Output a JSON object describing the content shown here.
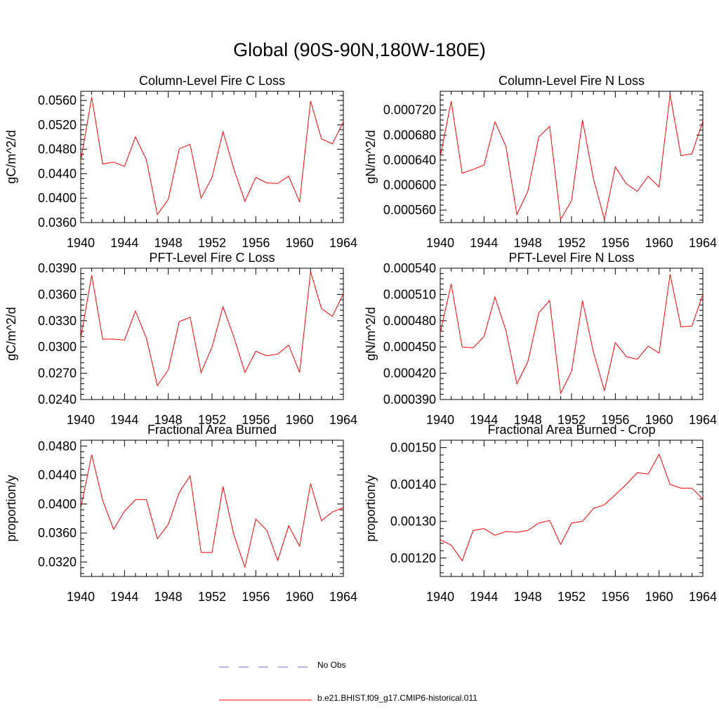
{
  "title": "Global (90S-90N,180W-180E)",
  "colors": {
    "series": "#ff0000",
    "obs": "#6a6ad8",
    "axis": "#000000"
  },
  "legend": [
    {
      "label": "No Obs",
      "style": "dashed",
      "color": "#6a6ad8"
    },
    {
      "label": "b.e21.BHIST.f09_g17.CMIP6-historical.011",
      "style": "solid",
      "color": "#ff0000"
    }
  ],
  "chart_data": [
    {
      "type": "line",
      "title": "Column-Level Fire C Loss",
      "ylabel": "gC/m^2/d",
      "xlim": [
        1940,
        1964
      ],
      "ylim": [
        0.036,
        0.0575
      ],
      "xticks": [
        "1940",
        "1944",
        "1948",
        "1952",
        "1956",
        "1960",
        "1964"
      ],
      "yticks": [
        "0.0360",
        "0.0400",
        "0.0440",
        "0.0480",
        "0.0520",
        "0.0560"
      ],
      "x": [
        1940,
        1941,
        1942,
        1943,
        1944,
        1945,
        1946,
        1947,
        1948,
        1949,
        1950,
        1951,
        1952,
        1953,
        1954,
        1955,
        1956,
        1957,
        1958,
        1959,
        1960,
        1961,
        1962,
        1963,
        1964
      ],
      "series": [
        {
          "name": "b.e21.BHIST.f09_g17.CMIP6-historical.011",
          "values": [
            0.0461,
            0.0565,
            0.0456,
            0.0459,
            0.0452,
            0.05,
            0.0463,
            0.0373,
            0.0398,
            0.0481,
            0.0488,
            0.04,
            0.0434,
            0.0509,
            0.0447,
            0.0395,
            0.0434,
            0.0425,
            0.0424,
            0.0436,
            0.0394,
            0.0559,
            0.0497,
            0.0489,
            0.0525
          ]
        }
      ]
    },
    {
      "type": "line",
      "title": "Column-Level Fire N Loss",
      "ylabel": "gN/m^2/d",
      "xlim": [
        1940,
        1964
      ],
      "ylim": [
        0.00054,
        0.00075
      ],
      "xticks": [
        "1940",
        "1944",
        "1948",
        "1952",
        "1956",
        "1960",
        "1964"
      ],
      "yticks": [
        "0.000560",
        "0.000600",
        "0.000640",
        "0.000680",
        "0.000720"
      ],
      "x": [
        1940,
        1941,
        1942,
        1943,
        1944,
        1945,
        1946,
        1947,
        1948,
        1949,
        1950,
        1951,
        1952,
        1953,
        1954,
        1955,
        1956,
        1957,
        1958,
        1959,
        1960,
        1961,
        1962,
        1963,
        1964
      ],
      "series": [
        {
          "name": "b.e21.BHIST.f09_g17.CMIP6-historical.011",
          "values": [
            0.000645,
            0.000734,
            0.000619,
            0.000625,
            0.000632,
            0.000701,
            0.000662,
            0.000553,
            0.00059,
            0.000677,
            0.000694,
            0.000545,
            0.000575,
            0.000704,
            0.00061,
            0.000545,
            0.000629,
            0.000602,
            0.00059,
            0.000614,
            0.000597,
            0.000745,
            0.000647,
            0.00065,
            0.000702
          ]
        }
      ]
    },
    {
      "type": "line",
      "title": "PFT-Level Fire C Loss",
      "ylabel": "gC/m^2/d",
      "xlim": [
        1940,
        1964
      ],
      "ylim": [
        0.024,
        0.039
      ],
      "xticks": [
        "1940",
        "1944",
        "1948",
        "1952",
        "1956",
        "1960",
        "1964"
      ],
      "yticks": [
        "0.0240",
        "0.0270",
        "0.0300",
        "0.0330",
        "0.0360",
        "0.0390"
      ],
      "x": [
        1940,
        1941,
        1942,
        1943,
        1944,
        1945,
        1946,
        1947,
        1948,
        1949,
        1950,
        1951,
        1952,
        1953,
        1954,
        1955,
        1956,
        1957,
        1958,
        1959,
        1960,
        1961,
        1962,
        1963,
        1964
      ],
      "series": [
        {
          "name": "b.e21.BHIST.f09_g17.CMIP6-historical.011",
          "values": [
            0.031,
            0.0382,
            0.0309,
            0.0309,
            0.0308,
            0.0341,
            0.031,
            0.0256,
            0.0274,
            0.0329,
            0.0334,
            0.0271,
            0.03,
            0.0346,
            0.0311,
            0.0271,
            0.0295,
            0.029,
            0.0292,
            0.0302,
            0.0271,
            0.0386,
            0.0344,
            0.0335,
            0.0361
          ]
        }
      ]
    },
    {
      "type": "line",
      "title": "PFT-Level Fire N Loss",
      "ylabel": "gN/m^2/d",
      "xlim": [
        1940,
        1964
      ],
      "ylim": [
        0.00039,
        0.00054
      ],
      "xticks": [
        "1940",
        "1944",
        "1948",
        "1952",
        "1956",
        "1960",
        "1964"
      ],
      "yticks": [
        "0.000390",
        "0.000420",
        "0.000450",
        "0.000480",
        "0.000510",
        "0.000540"
      ],
      "x": [
        1940,
        1941,
        1942,
        1943,
        1944,
        1945,
        1946,
        1947,
        1948,
        1949,
        1950,
        1951,
        1952,
        1953,
        1954,
        1955,
        1956,
        1957,
        1958,
        1959,
        1960,
        1961,
        1962,
        1963,
        1964
      ],
      "series": [
        {
          "name": "b.e21.BHIST.f09_g17.CMIP6-historical.011",
          "values": [
            0.000466,
            0.000522,
            0.00045,
            0.000449,
            0.000462,
            0.000507,
            0.000469,
            0.000408,
            0.000433,
            0.000489,
            0.000503,
            0.000397,
            0.000422,
            0.000503,
            0.000444,
            0.0004,
            0.000455,
            0.000439,
            0.000436,
            0.000451,
            0.000443,
            0.000533,
            0.000473,
            0.000474,
            0.00051
          ]
        }
      ]
    },
    {
      "type": "line",
      "title": "Fractional Area Burned",
      "ylabel": "proportion/y",
      "xlim": [
        1940,
        1964
      ],
      "ylim": [
        0.03,
        0.0488
      ],
      "xticks": [
        "1940",
        "1944",
        "1948",
        "1952",
        "1956",
        "1960",
        "1964"
      ],
      "yticks": [
        "0.0320",
        "0.0360",
        "0.0400",
        "0.0440",
        "0.0480"
      ],
      "x": [
        1940,
        1941,
        1942,
        1943,
        1944,
        1945,
        1946,
        1947,
        1948,
        1949,
        1950,
        1951,
        1952,
        1953,
        1954,
        1955,
        1956,
        1957,
        1958,
        1959,
        1960,
        1961,
        1962,
        1963,
        1964
      ],
      "series": [
        {
          "name": "b.e21.BHIST.f09_g17.CMIP6-historical.011",
          "values": [
            0.0394,
            0.0468,
            0.0405,
            0.0365,
            0.039,
            0.0406,
            0.0406,
            0.0352,
            0.0372,
            0.0416,
            0.0439,
            0.0333,
            0.0333,
            0.0424,
            0.0357,
            0.0313,
            0.0379,
            0.0364,
            0.0322,
            0.037,
            0.0342,
            0.0428,
            0.0377,
            0.0389,
            0.0395
          ]
        }
      ]
    },
    {
      "type": "line",
      "title": "Fractional Area Burned - Crop",
      "ylabel": "proportion/y",
      "xlim": [
        1940,
        1964
      ],
      "ylim": [
        0.00115,
        0.00152
      ],
      "xticks": [
        "1940",
        "1944",
        "1948",
        "1952",
        "1956",
        "1960",
        "1964"
      ],
      "yticks": [
        "0.00120",
        "0.00130",
        "0.00140",
        "0.00150"
      ],
      "x": [
        1940,
        1941,
        1942,
        1943,
        1944,
        1945,
        1946,
        1947,
        1948,
        1949,
        1950,
        1951,
        1952,
        1953,
        1954,
        1955,
        1956,
        1957,
        1958,
        1959,
        1960,
        1961,
        1962,
        1963,
        1964
      ],
      "series": [
        {
          "name": "b.e21.BHIST.f09_g17.CMIP6-historical.011",
          "values": [
            0.00125,
            0.001235,
            0.001193,
            0.001275,
            0.00128,
            0.001262,
            0.001272,
            0.00127,
            0.001275,
            0.001295,
            0.001302,
            0.001237,
            0.001295,
            0.0013,
            0.001335,
            0.001345,
            0.001372,
            0.0014,
            0.001432,
            0.001428,
            0.001482,
            0.0014,
            0.00139,
            0.00139,
            0.00136
          ]
        }
      ]
    }
  ]
}
